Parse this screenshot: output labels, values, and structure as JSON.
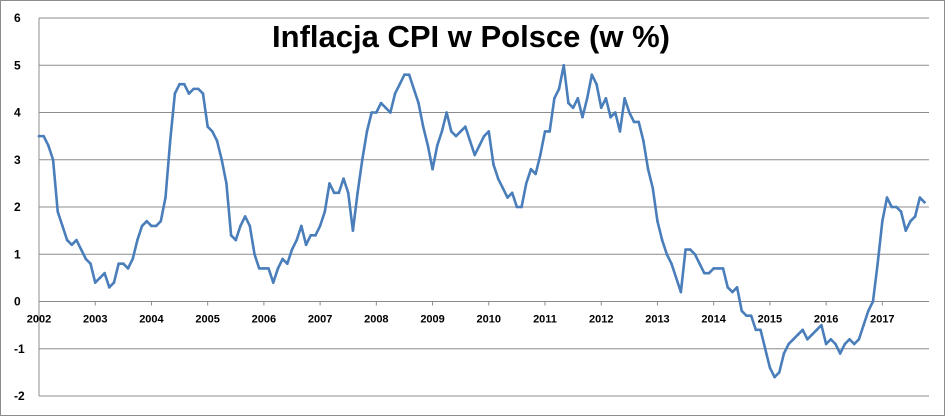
{
  "chart_data": {
    "type": "line",
    "title": "Inflacja CPI w Polsce (w %)",
    "xlabel": "",
    "ylabel": "",
    "ylim": [
      -2,
      6
    ],
    "xlim": [
      2002.0,
      2017.83
    ],
    "grid": true,
    "legend": "none",
    "colors": {
      "line": "#4a7ebb",
      "grid": "#8c8c8c"
    },
    "yticks": [
      "-2",
      "-1",
      "0",
      "1",
      "2",
      "3",
      "4",
      "5",
      "6"
    ],
    "xticks": [
      "2002",
      "2003",
      "2004",
      "2005",
      "2006",
      "2007",
      "2008",
      "2009",
      "2010",
      "2011",
      "2012",
      "2013",
      "2014",
      "2015",
      "2016",
      "2017"
    ],
    "series": [
      {
        "x_start": "2002-01",
        "frequency": "monthly",
        "values": [
          3.5,
          3.5,
          3.3,
          3.0,
          1.9,
          1.6,
          1.3,
          1.2,
          1.3,
          1.1,
          0.9,
          0.8,
          0.4,
          0.5,
          0.6,
          0.3,
          0.4,
          0.8,
          0.8,
          0.7,
          0.9,
          1.3,
          1.6,
          1.7,
          1.6,
          1.6,
          1.7,
          2.2,
          3.4,
          4.4,
          4.6,
          4.6,
          4.4,
          4.5,
          4.5,
          4.4,
          3.7,
          3.6,
          3.4,
          3.0,
          2.5,
          1.4,
          1.3,
          1.6,
          1.8,
          1.6,
          1.0,
          0.7,
          0.7,
          0.7,
          0.4,
          0.7,
          0.9,
          0.8,
          1.1,
          1.3,
          1.6,
          1.2,
          1.4,
          1.4,
          1.6,
          1.9,
          2.5,
          2.3,
          2.3,
          2.6,
          2.3,
          1.5,
          2.3,
          3.0,
          3.6,
          4.0,
          4.0,
          4.2,
          4.1,
          4.0,
          4.4,
          4.6,
          4.8,
          4.8,
          4.5,
          4.2,
          3.7,
          3.3,
          2.8,
          3.3,
          3.6,
          4.0,
          3.6,
          3.5,
          3.6,
          3.7,
          3.4,
          3.1,
          3.3,
          3.5,
          3.6,
          2.9,
          2.6,
          2.4,
          2.2,
          2.3,
          2.0,
          2.0,
          2.5,
          2.8,
          2.7,
          3.1,
          3.6,
          3.6,
          4.3,
          4.5,
          5.0,
          4.2,
          4.1,
          4.3,
          3.9,
          4.3,
          4.8,
          4.6,
          4.1,
          4.3,
          3.9,
          4.0,
          3.6,
          4.3,
          4.0,
          3.8,
          3.8,
          3.4,
          2.8,
          2.4,
          1.7,
          1.3,
          1.0,
          0.8,
          0.5,
          0.2,
          1.1,
          1.1,
          1.0,
          0.8,
          0.6,
          0.6,
          0.7,
          0.7,
          0.7,
          0.3,
          0.2,
          0.3,
          -0.2,
          -0.3,
          -0.3,
          -0.6,
          -0.6,
          -1.0,
          -1.4,
          -1.6,
          -1.5,
          -1.1,
          -0.9,
          -0.8,
          -0.7,
          -0.6,
          -0.8,
          -0.7,
          -0.6,
          -0.5,
          -0.9,
          -0.8,
          -0.9,
          -1.1,
          -0.9,
          -0.8,
          -0.9,
          -0.8,
          -0.5,
          -0.2,
          0.0,
          0.8,
          1.7,
          2.2,
          2.0,
          2.0,
          1.9,
          1.5,
          1.7,
          1.8,
          2.2,
          2.1
        ]
      }
    ]
  }
}
